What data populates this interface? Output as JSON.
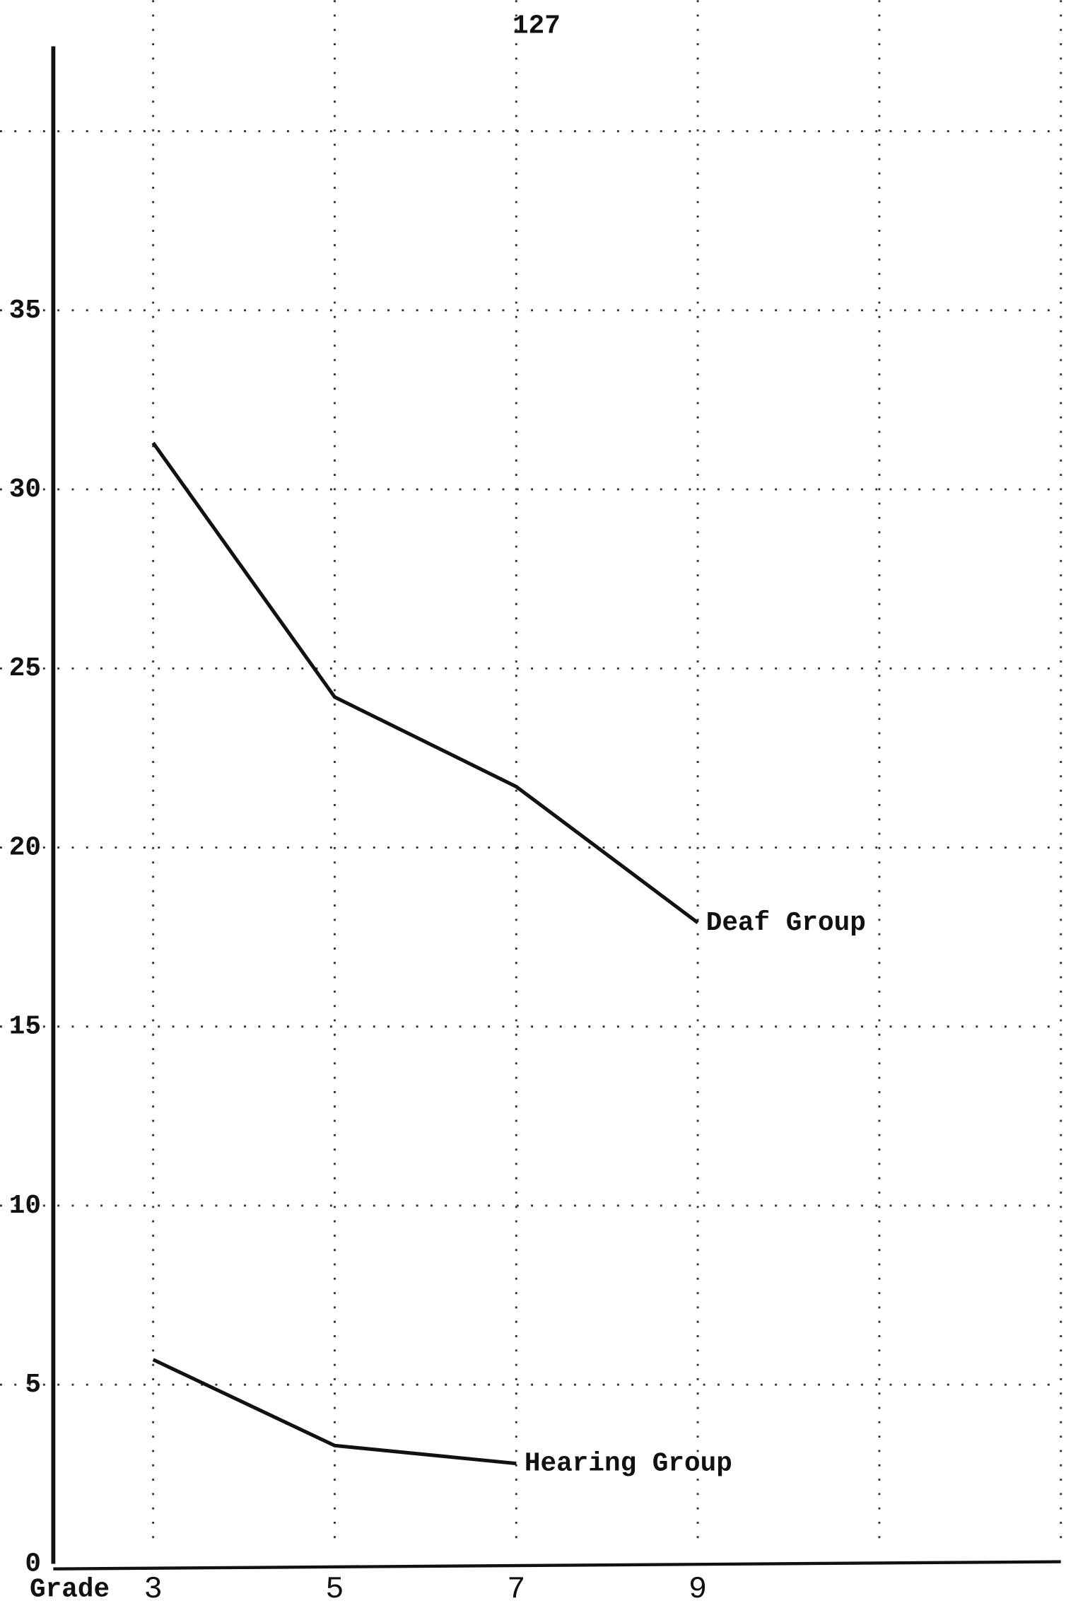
{
  "page_number": "127",
  "chart_data": {
    "type": "line",
    "x_label": "Grade",
    "x": [
      3,
      5,
      7,
      9
    ],
    "series": [
      {
        "name": "Deaf Group",
        "color": "#111111",
        "values": [
          31.3,
          24.2,
          21.7,
          17.9
        ]
      },
      {
        "name": "Hearing Group",
        "color": "#111111",
        "values": [
          5.7,
          3.3,
          2.8,
          null
        ]
      }
    ],
    "xlim": [
      1.9,
      13
    ],
    "xticks": [
      3,
      5,
      7,
      9
    ],
    "xgrid": [
      3,
      5,
      7,
      9,
      11,
      13
    ],
    "ylim": [
      0,
      42
    ],
    "yticks": [
      0,
      5,
      10,
      15,
      20,
      25,
      30,
      35
    ],
    "ygrid": [
      5,
      10,
      15,
      20,
      25,
      30,
      35,
      40
    ],
    "grid": true
  }
}
